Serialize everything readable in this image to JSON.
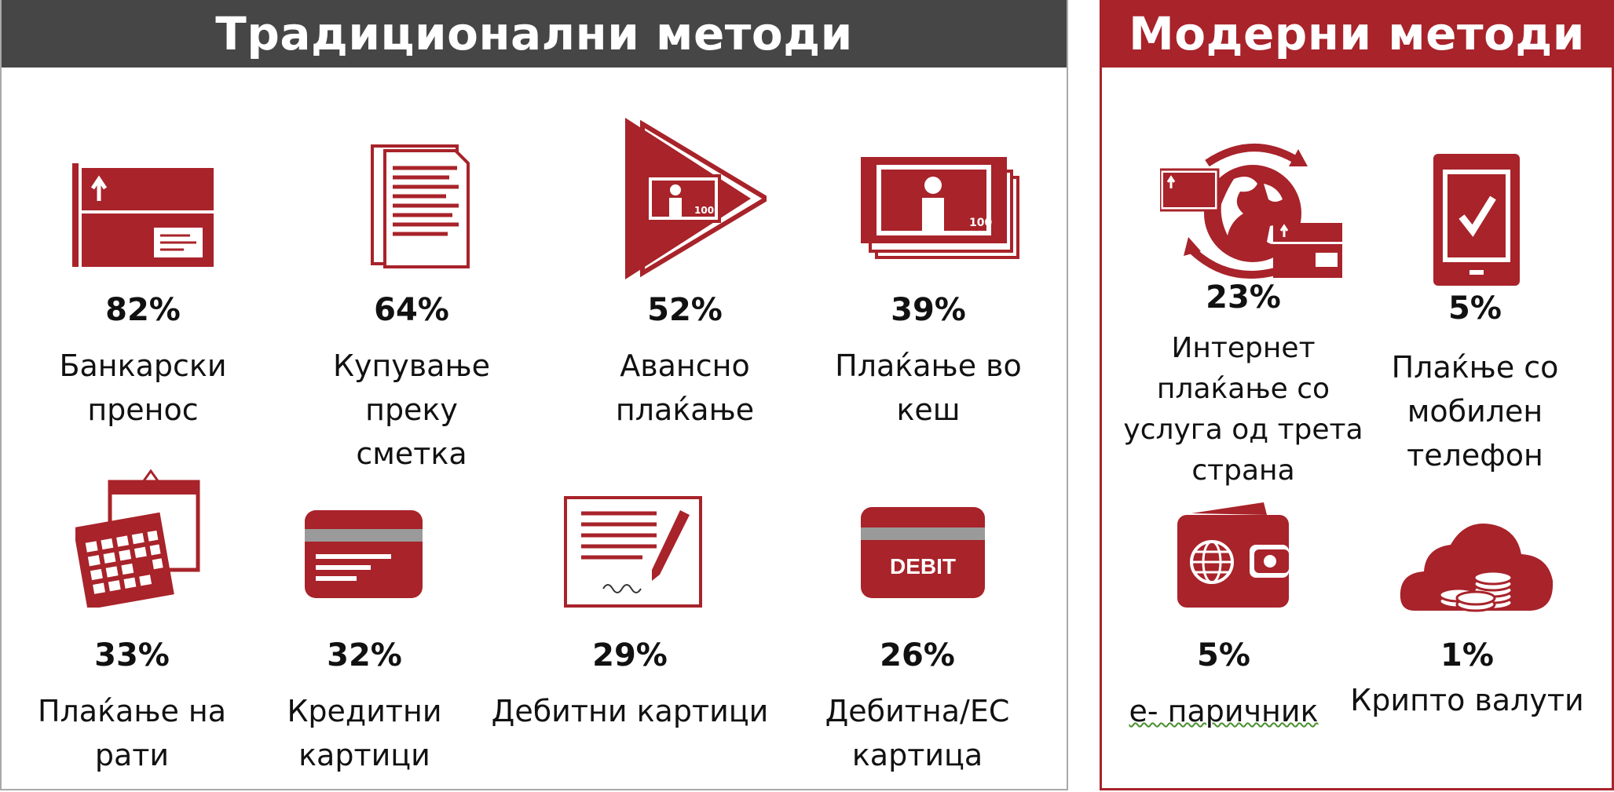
{
  "traditional": {
    "title": "Традиционални методи",
    "items": [
      {
        "pct": "82%",
        "label": "Банкарски\nпренос",
        "icon": "bank-transfer-icon"
      },
      {
        "pct": "64%",
        "label": "Купување преку\nсметка",
        "icon": "invoice-icon"
      },
      {
        "pct": "52%",
        "label": "Авансно\nплаќање",
        "icon": "advance-payment-icon"
      },
      {
        "pct": "39%",
        "label": "Плаќање во\nкеш",
        "icon": "cash-icon"
      },
      {
        "pct": "33%",
        "label": "Плаќање на\nрати",
        "icon": "calendar-icon"
      },
      {
        "pct": "32%",
        "label": "Кредитни\nкартици",
        "icon": "credit-card-icon"
      },
      {
        "pct": "29%",
        "label": "Дебитни картици",
        "icon": "cheque-pen-icon"
      },
      {
        "pct": "26%",
        "label": "Дебитна/ЕС\nкартица",
        "icon": "debit-card-icon",
        "card_text": "DEBIT"
      }
    ]
  },
  "modern": {
    "title": "Модерни методи",
    "items": [
      {
        "pct": "23%",
        "label": "Интернет\nплаќање со\nуслуга од трета\nстрана",
        "icon": "globe-transfer-icon"
      },
      {
        "pct": "5%",
        "label": "Плаќње со\nмобилен\nтелефон",
        "icon": "mobile-phone-icon"
      },
      {
        "pct": "5%",
        "label": "е- паричник",
        "icon": "e-wallet-icon"
      },
      {
        "pct": "1%",
        "label": "Крипто валути",
        "icon": "crypto-coins-icon"
      }
    ]
  },
  "colors": {
    "accent": "#a8232a",
    "header_dark": "#464646"
  }
}
